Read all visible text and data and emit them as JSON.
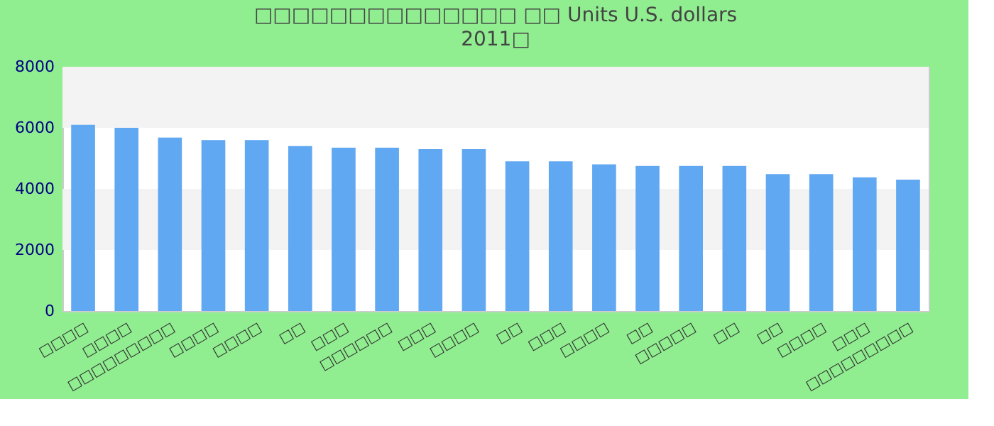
{
  "chart_data": {
    "type": "bar",
    "title": "□□□□□□□□□□□□□□ □□ Units U.S. dollars",
    "subtitle": "2011□",
    "categories": [
      "□□□□",
      "□□□□",
      "□□□□□□□□□",
      "□□□□",
      "□□□□",
      "□□",
      "□□□",
      "□□□□□□",
      "□□□",
      "□□□□",
      "□□",
      "□□□",
      "□□□□",
      "□□",
      "□□□□□",
      "□□",
      "□□",
      "□□□□",
      "□□□",
      "□□□□□□□□□"
    ],
    "values": [
      6100,
      6000,
      5680,
      5600,
      5600,
      5400,
      5350,
      5350,
      5300,
      5300,
      4900,
      4900,
      4800,
      4750,
      4750,
      4750,
      4480,
      4480,
      4380,
      4300
    ],
    "color": "#60a8f2",
    "ylim": [
      0,
      8000
    ],
    "yticks": [
      0,
      2000,
      4000,
      6000,
      8000
    ],
    "grid": false,
    "bands": [
      {
        "axis": "y",
        "from": 2000,
        "to": 4000,
        "color": "#f3f3f3"
      },
      {
        "axis": "y",
        "from": 6000,
        "to": 8000,
        "color": "#f3f3f3"
      }
    ]
  }
}
